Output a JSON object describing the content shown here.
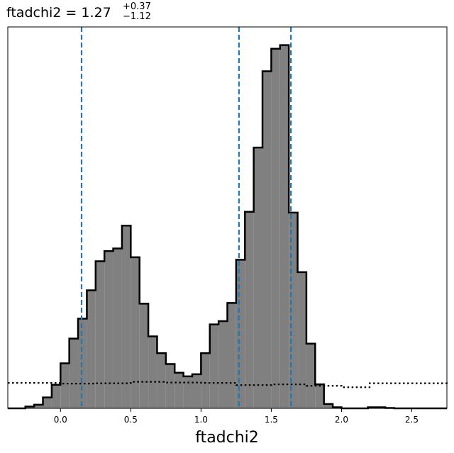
{
  "chart_data": {
    "type": "bar",
    "title": {
      "main": "ftadchi2 = 1.27",
      "sup": "+0.37",
      "sub": "−1.12"
    },
    "xlabel": "ftadchi2",
    "ylabel": "",
    "xlim": [
      -0.375,
      2.75
    ],
    "ylim": [
      0,
      1.05
    ],
    "grid": false,
    "xticks": [
      0.0,
      0.5,
      1.0,
      1.5,
      2.0,
      2.5
    ],
    "xtick_labels": [
      "0.0",
      "0.5",
      "1.0",
      "1.5",
      "2.0",
      "2.5"
    ],
    "histogram": {
      "bin_edges": [
        -0.375,
        -0.3125,
        -0.25,
        -0.1875,
        -0.125,
        -0.0625,
        0.0,
        0.0625,
        0.125,
        0.1875,
        0.25,
        0.3125,
        0.375,
        0.4375,
        0.5,
        0.5625,
        0.625,
        0.6875,
        0.75,
        0.8125,
        0.875,
        0.9375,
        1.0,
        1.0625,
        1.125,
        1.1875,
        1.25,
        1.3125,
        1.375,
        1.4375,
        1.5,
        1.5625,
        1.625,
        1.6875,
        1.75,
        1.8125,
        1.875,
        1.9375,
        2.0,
        2.0625,
        2.125,
        2.1875,
        2.25,
        2.3125,
        2.375,
        2.4375,
        2.5,
        2.5625,
        2.625,
        2.6875,
        2.75
      ],
      "counts": [
        0.0,
        0.0,
        0.005,
        0.01,
        0.03,
        0.065,
        0.124,
        0.192,
        0.247,
        0.325,
        0.405,
        0.433,
        0.44,
        0.503,
        0.416,
        0.288,
        0.198,
        0.152,
        0.122,
        0.098,
        0.088,
        0.094,
        0.152,
        0.231,
        0.24,
        0.29,
        0.409,
        0.541,
        0.718,
        0.928,
        0.99,
        1.0,
        0.539,
        0.375,
        0.178,
        0.066,
        0.012,
        0.003,
        0.0,
        0.0,
        0.0,
        0.003,
        0.003,
        0.001,
        0.0,
        0.0,
        0.0,
        0.0,
        0.0,
        0.0
      ],
      "fill_color": "#808080",
      "edge_color": "#000000"
    },
    "prior": {
      "x": [
        -0.375,
        0.0,
        0.25,
        0.5,
        0.75,
        1.0,
        1.25,
        1.5,
        1.75,
        2.0,
        2.2,
        2.75
      ],
      "y": [
        0.07,
        0.068,
        0.069,
        0.073,
        0.071,
        0.07,
        0.064,
        0.066,
        0.062,
        0.058,
        0.069,
        0.067
      ],
      "style": "dotted",
      "color": "#000000"
    },
    "vlines": {
      "values": [
        0.15,
        1.27,
        1.64
      ],
      "style": "dashed",
      "color": "#1f77b4"
    }
  }
}
